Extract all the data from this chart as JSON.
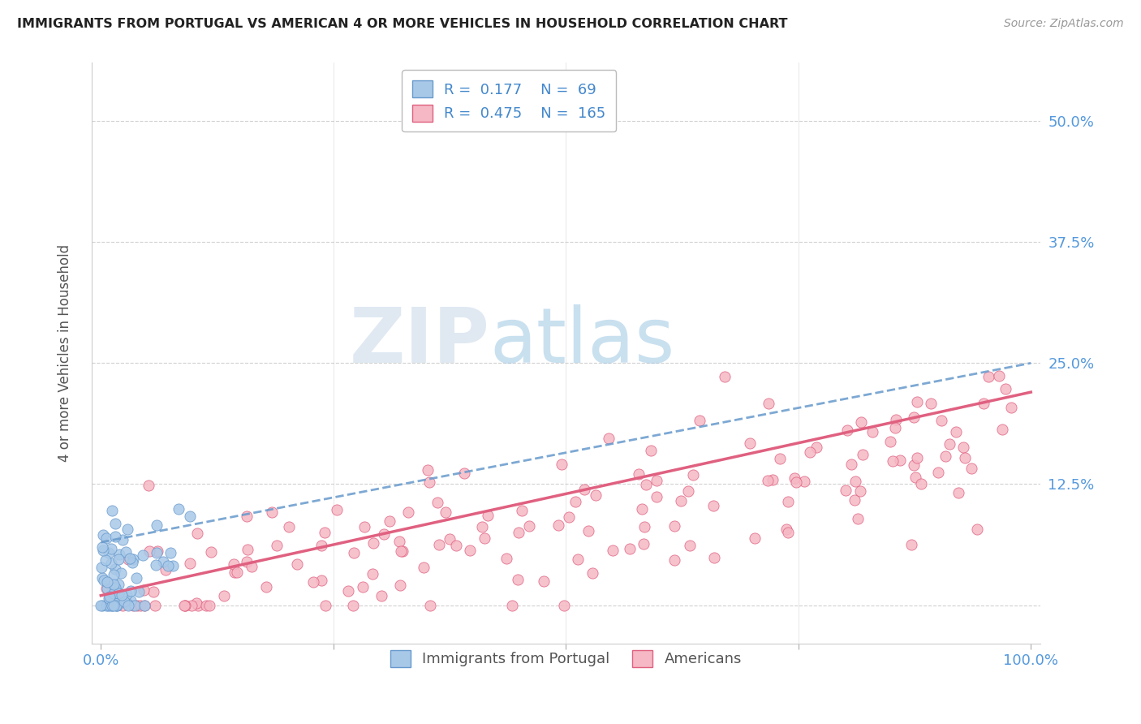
{
  "title": "IMMIGRANTS FROM PORTUGAL VS AMERICAN 4 OR MORE VEHICLES IN HOUSEHOLD CORRELATION CHART",
  "source": "Source: ZipAtlas.com",
  "ylabel": "4 or more Vehicles in Household",
  "xlim": [
    -0.01,
    1.01
  ],
  "ylim": [
    -0.04,
    0.56
  ],
  "xticks": [
    0.0,
    0.25,
    0.5,
    0.75,
    1.0
  ],
  "xtick_labels": [
    "0.0%",
    "",
    "",
    "",
    "100.0%"
  ],
  "yticks": [
    0.0,
    0.125,
    0.25,
    0.375,
    0.5
  ],
  "ytick_labels_right": [
    "",
    "12.5%",
    "25.0%",
    "37.5%",
    "50.0%"
  ],
  "color_blue": "#a8c8e8",
  "color_pink": "#f5b8c4",
  "color_blue_line": "#6699cc",
  "color_pink_line": "#e06080",
  "watermark_zip": "ZIP",
  "watermark_atlas": "atlas",
  "R1": 0.177,
  "N1": 69,
  "R2": 0.475,
  "N2": 165,
  "background": "#ffffff",
  "grid_color": "#cccccc",
  "title_color": "#222222",
  "axis_label_color": "#555555",
  "tick_color": "#5599dd",
  "legend_text_color": "#4488cc"
}
